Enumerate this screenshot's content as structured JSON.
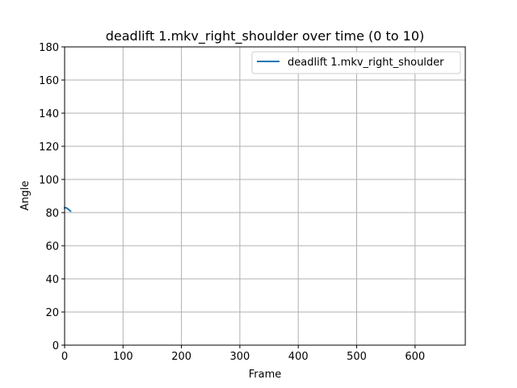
{
  "chart_data": {
    "type": "line",
    "title": "deadlift 1.mkv_right_shoulder over time (0 to 10)",
    "xlabel": "Frame",
    "ylabel": "Angle",
    "xlim": [
      0,
      686
    ],
    "ylim": [
      0,
      180
    ],
    "xticks": [
      0,
      100,
      200,
      300,
      400,
      500,
      600
    ],
    "yticks": [
      0,
      20,
      40,
      60,
      80,
      100,
      120,
      140,
      160,
      180
    ],
    "grid": true,
    "legend_position": "top-right",
    "series": [
      {
        "name": "deadlift 1.mkv_right_shoulder",
        "color": "#1f77b4",
        "x": [
          0,
          1,
          2,
          3,
          4,
          5,
          6,
          7,
          8,
          9,
          10
        ],
        "y": [
          82.8,
          82.9,
          82.9,
          82.8,
          82.6,
          82.4,
          82.1,
          81.8,
          81.5,
          81.2,
          80.9
        ]
      }
    ]
  }
}
